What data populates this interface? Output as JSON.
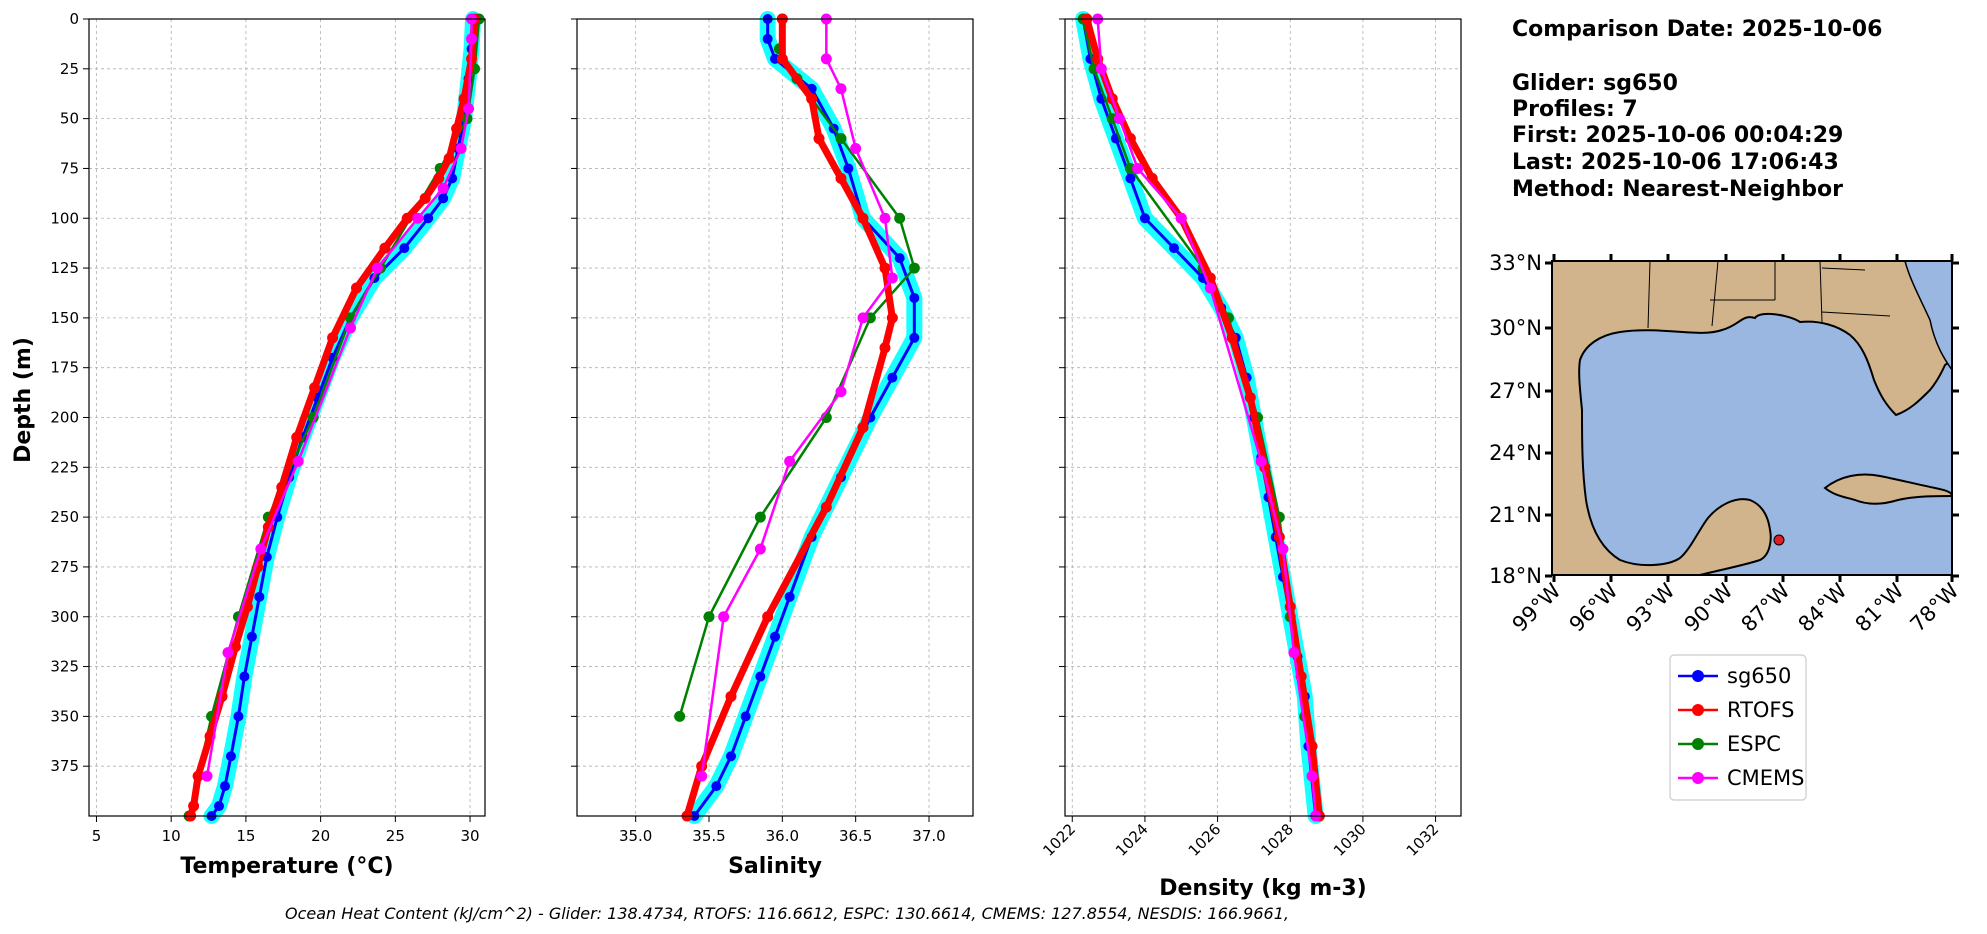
{
  "chart_data": [
    {
      "type": "line",
      "xlabel": "Temperature (°C)",
      "ylabel": "Depth (m)",
      "xlim": [
        4.5,
        31
      ],
      "ylim": [
        400,
        0
      ],
      "xticks": [
        5,
        10,
        15,
        20,
        25,
        30
      ],
      "yticks": [
        0,
        25,
        50,
        75,
        100,
        125,
        150,
        175,
        200,
        225,
        250,
        275,
        300,
        325,
        350,
        375
      ],
      "grid": true,
      "series": [
        {
          "name": "sg650",
          "color": "#0000ff",
          "x": [
            30.2,
            30.1,
            29.9,
            29.6,
            29.2,
            28.8,
            28.2,
            27.2,
            25.6,
            23.6,
            22.0,
            20.8,
            19.8,
            18.8,
            17.9,
            17.1,
            16.4,
            15.9,
            15.4,
            14.9,
            14.5,
            14.0,
            13.6,
            13.2,
            12.7
          ],
          "y": [
            0,
            15,
            30,
            50,
            65,
            80,
            90,
            100,
            115,
            130,
            150,
            170,
            190,
            210,
            230,
            250,
            270,
            290,
            310,
            330,
            350,
            370,
            385,
            395,
            400
          ]
        },
        {
          "name": "RTOFS",
          "color": "#ff0000",
          "x": [
            30.3,
            30.1,
            29.6,
            29.1,
            28.6,
            27.9,
            27.0,
            25.8,
            24.3,
            22.4,
            20.8,
            19.6,
            18.4,
            17.4,
            16.5,
            15.8,
            15.1,
            14.3,
            13.4,
            12.6,
            11.8,
            11.5,
            11.3
          ],
          "y": [
            0,
            20,
            40,
            55,
            70,
            80,
            90,
            100,
            115,
            135,
            160,
            185,
            210,
            235,
            255,
            275,
            295,
            315,
            340,
            360,
            380,
            395,
            400
          ]
        },
        {
          "name": "ESPC",
          "color": "#008000",
          "x": [
            30.6,
            30.3,
            29.8,
            28.0,
            24.0,
            22.0,
            19.5,
            16.5,
            14.5,
            12.7,
            11.2
          ],
          "y": [
            0,
            25,
            50,
            75,
            125,
            150,
            200,
            250,
            300,
            350,
            400
          ]
        },
        {
          "name": "CMEMS",
          "color": "#ff00ff",
          "x": [
            30.1,
            30.1,
            29.9,
            29.4,
            28.2,
            26.5,
            23.8,
            22.0,
            18.5,
            16.0,
            13.8,
            12.4
          ],
          "y": [
            0,
            10,
            45,
            65,
            85,
            100,
            125,
            155,
            222,
            266,
            318,
            380
          ]
        }
      ]
    },
    {
      "type": "line",
      "xlabel": "Salinity",
      "xlim": [
        34.6,
        37.3
      ],
      "ylim": [
        400,
        0
      ],
      "xticks": [
        35.0,
        35.5,
        36.0,
        36.5,
        37.0
      ],
      "yticks": [
        0,
        25,
        50,
        75,
        100,
        125,
        150,
        175,
        200,
        225,
        250,
        275,
        300,
        325,
        350,
        375
      ],
      "grid": true,
      "series": [
        {
          "name": "sg650",
          "color": "#0000ff",
          "x": [
            35.9,
            35.9,
            35.95,
            36.2,
            36.35,
            36.45,
            36.55,
            36.8,
            36.9,
            36.9,
            36.75,
            36.6,
            36.4,
            36.2,
            36.05,
            35.95,
            35.85,
            35.75,
            35.65,
            35.55,
            35.4
          ],
          "y": [
            0,
            10,
            20,
            35,
            55,
            75,
            100,
            120,
            140,
            160,
            180,
            200,
            230,
            260,
            290,
            310,
            330,
            350,
            370,
            385,
            400
          ]
        },
        {
          "name": "RTOFS",
          "color": "#ff0000",
          "x": [
            36.0,
            36.0,
            36.2,
            36.25,
            36.4,
            36.55,
            36.7,
            36.75,
            36.7,
            36.55,
            36.3,
            35.9,
            35.65,
            35.45,
            35.35
          ],
          "y": [
            0,
            20,
            40,
            60,
            80,
            100,
            125,
            150,
            165,
            205,
            245,
            300,
            340,
            375,
            400
          ]
        },
        {
          "name": "ESPC",
          "color": "#008000",
          "x": [
            36.0,
            35.98,
            36.1,
            36.4,
            36.8,
            36.9,
            36.6,
            36.3,
            35.85,
            35.5,
            35.3
          ],
          "y": [
            0,
            15,
            30,
            60,
            100,
            125,
            150,
            200,
            250,
            300,
            350
          ]
        },
        {
          "name": "CMEMS",
          "color": "#ff00ff",
          "x": [
            36.3,
            36.3,
            36.4,
            36.5,
            36.7,
            36.75,
            36.55,
            36.4,
            36.05,
            35.85,
            35.6,
            35.45
          ],
          "y": [
            0,
            20,
            35,
            65,
            100,
            130,
            150,
            187,
            222,
            266,
            300,
            380
          ]
        }
      ]
    },
    {
      "type": "line",
      "xlabel": "Density (kg m-3)",
      "xlim": [
        1021.8,
        1032.7
      ],
      "ylim": [
        400,
        0
      ],
      "xticks": [
        1022,
        1024,
        1026,
        1028,
        1030,
        1032
      ],
      "yticks": [
        0,
        25,
        50,
        75,
        100,
        125,
        150,
        175,
        200,
        225,
        250,
        275,
        300,
        325,
        350,
        375
      ],
      "grid": true,
      "series": [
        {
          "name": "sg650",
          "color": "#0000ff",
          "x": [
            1022.3,
            1022.5,
            1022.8,
            1023.2,
            1023.6,
            1024.0,
            1024.8,
            1025.6,
            1026.1,
            1026.5,
            1026.8,
            1027.0,
            1027.2,
            1027.4,
            1027.6,
            1027.8,
            1028.0,
            1028.2,
            1028.4,
            1028.5,
            1028.7
          ],
          "y": [
            0,
            20,
            40,
            60,
            80,
            100,
            115,
            130,
            145,
            160,
            180,
            200,
            220,
            240,
            260,
            280,
            300,
            320,
            340,
            365,
            400
          ]
        },
        {
          "name": "RTOFS",
          "color": "#ff0000",
          "x": [
            1022.4,
            1022.7,
            1023.1,
            1023.6,
            1024.2,
            1025.0,
            1025.8,
            1026.4,
            1026.9,
            1027.3,
            1027.7,
            1028.0,
            1028.3,
            1028.6,
            1028.8
          ],
          "y": [
            0,
            20,
            40,
            60,
            80,
            100,
            130,
            160,
            190,
            225,
            260,
            295,
            330,
            365,
            400
          ]
        },
        {
          "name": "ESPC",
          "color": "#008000",
          "x": [
            1022.3,
            1022.6,
            1023.1,
            1023.6,
            1025.6,
            1026.3,
            1027.1,
            1027.7,
            1028.0,
            1028.4,
            1028.8
          ],
          "y": [
            0,
            25,
            50,
            75,
            125,
            150,
            200,
            250,
            300,
            350,
            400
          ]
        },
        {
          "name": "CMEMS",
          "color": "#ff00ff",
          "x": [
            1022.7,
            1022.8,
            1023.3,
            1023.8,
            1025.0,
            1025.8,
            1027.2,
            1027.8,
            1028.1,
            1028.6,
            1028.7
          ],
          "y": [
            0,
            25,
            50,
            75,
            100,
            135,
            222,
            266,
            318,
            380,
            400
          ]
        }
      ]
    }
  ],
  "info": {
    "comparison_date": "Comparison Date: 2025-10-06",
    "glider": "Glider: sg650",
    "profiles": "Profiles: 7",
    "first": "First: 2025-10-06 00:04:29",
    "last": "Last: 2025-10-06 17:06:43",
    "method": "Method: Nearest-Neighbor"
  },
  "map": {
    "lat_ticks": [
      "33°N",
      "30°N",
      "27°N",
      "24°N",
      "21°N",
      "18°N"
    ],
    "lon_ticks": [
      "99°W",
      "96°W",
      "93°W",
      "90°W",
      "87°W",
      "84°W",
      "81°W",
      "78°W"
    ],
    "land_color": "#d2b48c",
    "ocean_color": "#99b7e0",
    "marker_color": "#e02020"
  },
  "legend": [
    "sg650",
    "RTOFS",
    "ESPC",
    "CMEMS"
  ],
  "footer": "Ocean Heat Content (kJ/cm^2) - Glider: 138.4734,  RTOFS: 116.6612,  ESPC: 130.6614,  CMEMS: 127.8554,  NESDIS: 166.9661,"
}
